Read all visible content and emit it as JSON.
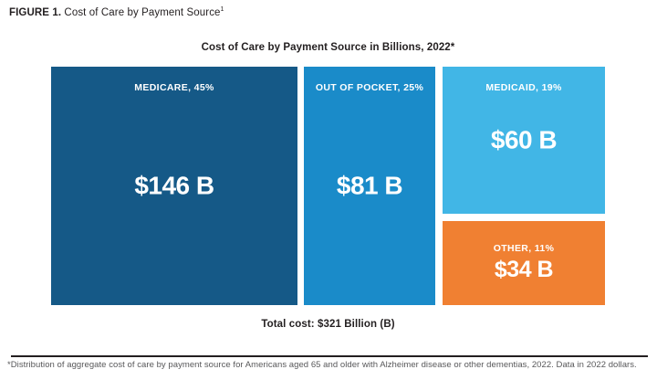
{
  "figure_title": {
    "label": "FIGURE 1.",
    "text": " Cost of Care by Payment Source",
    "superscript": "1"
  },
  "chart_title": "Cost of Care by Payment Source in Billions, 2022*",
  "total_cost": "Total cost: $321 Billion (B)",
  "footnote": "*Distribution of aggregate cost of care by payment source for Americans aged 65 and older with Alzheimer disease or other dementias, 2022. Data in 2022 dollars.",
  "colors": {
    "medicare_blue": "#155987",
    "out_of_pocket_blue": "#1a8bc9",
    "medicaid_light_blue": "#41b6e6",
    "other_orange": "#f08032",
    "text_dark": "#231f20",
    "footnote_gray": "#58585a"
  },
  "chart_data": {
    "type": "treemap",
    "title": "Cost of Care by Payment Source in Billions, 2022*",
    "total_label": "Total cost: $321 Billion (B)",
    "total_billions": 321,
    "year": 2022,
    "segments": [
      {
        "name": "Medicare",
        "label": "MEDICARE, 45%",
        "value_label": "$146 B",
        "value_billions": 146,
        "percent": 45,
        "color": "#155987"
      },
      {
        "name": "Out of Pocket",
        "label": "OUT OF POCKET, 25%",
        "value_label": "$81 B",
        "value_billions": 81,
        "percent": 25,
        "color": "#1a8bc9"
      },
      {
        "name": "Medicaid",
        "label": "MEDICAID, 19%",
        "value_label": "$60 B",
        "value_billions": 60,
        "percent": 19,
        "color": "#41b6e6"
      },
      {
        "name": "Other",
        "label": "OTHER, 11%",
        "value_label": "$34 B",
        "value_billions": 34,
        "percent": 11,
        "color": "#f08032"
      }
    ]
  }
}
